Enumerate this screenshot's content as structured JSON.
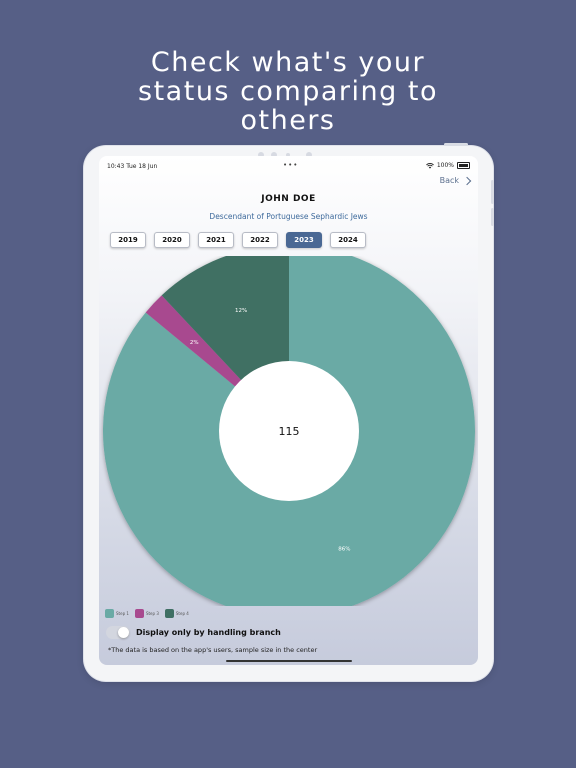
{
  "headline": [
    "Check what's your",
    "status comparing to",
    "others"
  ],
  "status_bar": {
    "time": "10:43  Tue 18 Jun",
    "dots": "•••",
    "battery": "100%"
  },
  "nav": {
    "back_label": "Back"
  },
  "profile": {
    "name": "JOHN DOE",
    "subtitle": "Descendant of Portuguese Sephardic Jews"
  },
  "years": [
    "2019",
    "2020",
    "2021",
    "2022",
    "2023",
    "2024"
  ],
  "selected_year": "2023",
  "chart_data": {
    "type": "pie",
    "donut": true,
    "center_label": "115",
    "slices": [
      {
        "label": "86%",
        "value": 86,
        "color": "#6aaaa5",
        "legend": "Step 1"
      },
      {
        "label": "2%",
        "value": 2,
        "color": "#a84a8f",
        "legend": "Step 3"
      },
      {
        "label": "12%",
        "value": 12,
        "color": "#3f6f63",
        "legend": "Step 4"
      }
    ],
    "legend_position": "bottom-left"
  },
  "toggle": {
    "label": "Display only by handling branch",
    "on": false
  },
  "footnote": "*The data is based on the app's users, sample size in the center"
}
